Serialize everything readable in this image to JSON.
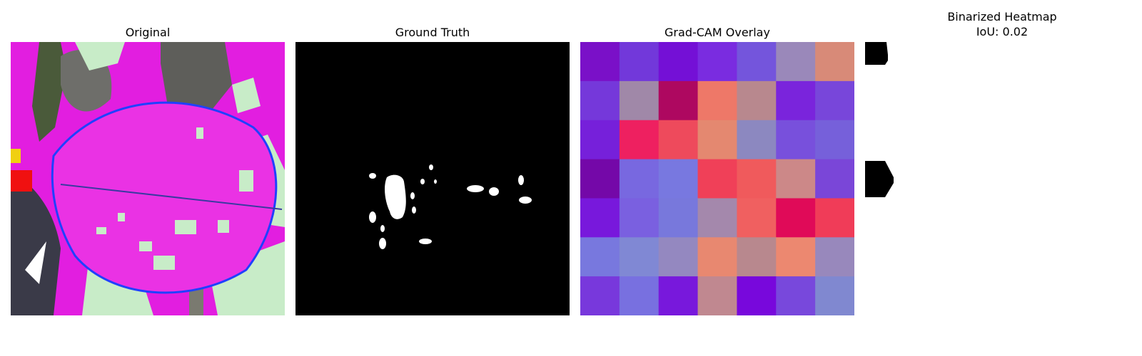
{
  "panels": {
    "original": {
      "title": "Original"
    },
    "ground_truth": {
      "title": "Ground Truth"
    },
    "gradcam": {
      "title": "Grad-CAM Overlay",
      "grid_colors": [
        [
          "#7a10c8",
          "#7238da",
          "#7410d6",
          "#7a2ce0",
          "#7455dc",
          "#9a88ba",
          "#d88a78"
        ],
        [
          "#7538da",
          "#a088a8",
          "#ae0860",
          "#ee7868",
          "#b8888e",
          "#7a24dc",
          "#7846da"
        ],
        [
          "#7620da",
          "#ee2060",
          "#ee4a5c",
          "#e48870",
          "#8c88c0",
          "#7850dc",
          "#7660da"
        ],
        [
          "#7408a8",
          "#7868e0",
          "#7878e0",
          "#f04058",
          "#f05a5c",
          "#cc8888",
          "#7a46d8"
        ],
        [
          "#7818dc",
          "#7a60e0",
          "#7878dc",
          "#a488ac",
          "#f06060",
          "#e00a58",
          "#f03c58"
        ],
        [
          "#7878de",
          "#8088d4",
          "#9488c0",
          "#e88870",
          "#b8888e",
          "#ec8870",
          "#9888bc"
        ],
        [
          "#7838dc",
          "#7870e0",
          "#7818dc",
          "#c08890",
          "#7808dc",
          "#7848dc",
          "#8088d0"
        ]
      ]
    },
    "binarized": {
      "title": "Binarized Heatmap\nIoU: 0.02"
    }
  }
}
